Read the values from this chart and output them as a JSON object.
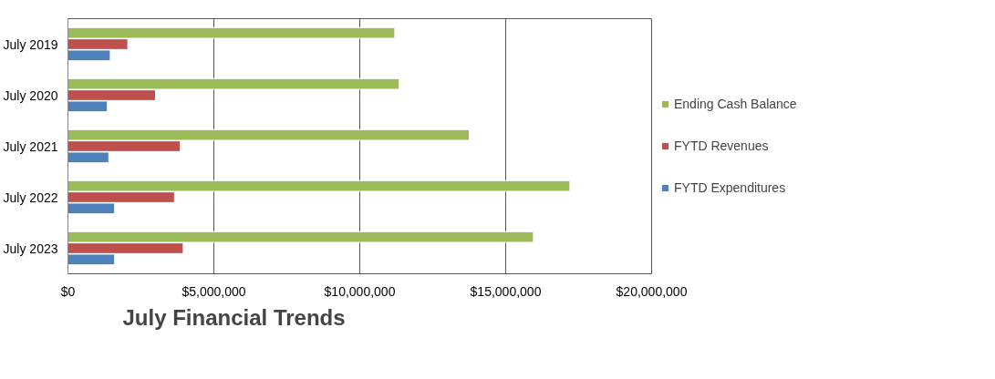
{
  "chart_data": {
    "type": "bar",
    "orientation": "horizontal",
    "title": "July Financial Trends",
    "categories": [
      "July 2019",
      "July 2020",
      "July 2021",
      "July 2022",
      "July 2023"
    ],
    "series": [
      {
        "name": "Ending Cash Balance",
        "color": "#9bbb59",
        "values": [
          11200000,
          11350000,
          13750000,
          17200000,
          15950000
        ]
      },
      {
        "name": "FYTD Revenues",
        "color": "#c0504d",
        "values": [
          2050000,
          3000000,
          3850000,
          3650000,
          3950000
        ]
      },
      {
        "name": "FYTD Expenditures",
        "color": "#4f81bd",
        "values": [
          1450000,
          1350000,
          1400000,
          1600000,
          1600000
        ]
      }
    ],
    "xlim": [
      0,
      20000000
    ],
    "xticks": [
      {
        "value": 0,
        "label": "$0"
      },
      {
        "value": 5000000,
        "label": "$5,000,000"
      },
      {
        "value": 10000000,
        "label": "$10,000,000"
      },
      {
        "value": 15000000,
        "label": "$15,000,000"
      },
      {
        "value": 20000000,
        "label": "$20,000,000"
      }
    ],
    "grid": "x",
    "legend": "right"
  }
}
